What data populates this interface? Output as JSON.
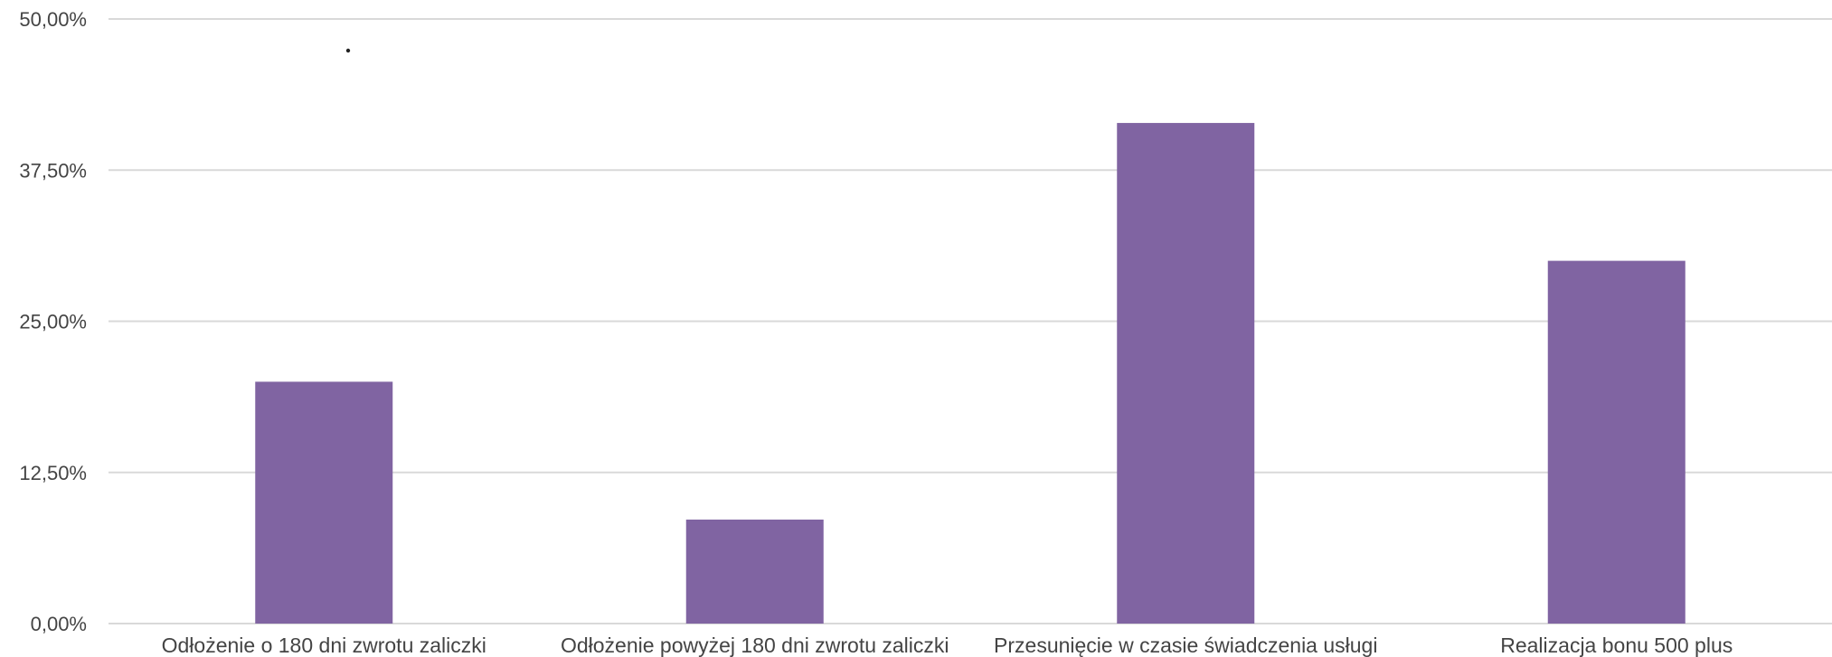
{
  "chart_data": {
    "type": "bar",
    "categories": [
      "Odłożenie o 180 dni zwrotu zaliczki",
      "Odłożenie powyżej 180 dni zwrotu zaliczki",
      "Przesunięcie w czasie świadczenia usługi",
      "Realizacja bonu 500 plus"
    ],
    "values": [
      20.0,
      8.6,
      41.4,
      30.0
    ],
    "ylim": [
      0,
      50
    ],
    "yticks": [
      0,
      12.5,
      25,
      37.5,
      50
    ],
    "ytick_labels": [
      "0,00%",
      "12,50%",
      "25,00%",
      "37,50%",
      "50,00%"
    ],
    "title": "",
    "xlabel": "",
    "ylabel": "",
    "grid": true,
    "legend": "none",
    "bar_color": "#8064a2",
    "grid_color": "#d9d9d9",
    "text_color": "#444444"
  }
}
